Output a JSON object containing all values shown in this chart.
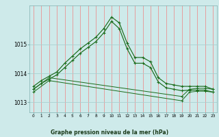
{
  "title": "Graphe pression niveau de la mer (hPa)",
  "bg_color": "#ceeaea",
  "grid_color_v": "#f08080",
  "grid_color_h": "#a8d0d0",
  "line_color": "#1a6b1a",
  "xlim": [
    -0.5,
    23.5
  ],
  "ylim": [
    1012.65,
    1016.35
  ],
  "yticks": [
    1013,
    1014,
    1015
  ],
  "xtick_labels": [
    "0",
    "1",
    "2",
    "3",
    "4",
    "5",
    "6",
    "7",
    "8",
    "9",
    "10",
    "11",
    "12",
    "13",
    "14",
    "15",
    "16",
    "17",
    "18",
    "19",
    "20",
    "21",
    "22",
    "23"
  ],
  "series": [
    {
      "x": [
        0,
        1,
        2,
        3,
        4,
        5,
        6,
        7,
        8,
        9,
        10,
        11,
        12,
        13,
        14,
        15,
        16,
        17,
        18,
        19,
        20,
        21,
        22,
        23
      ],
      "y": [
        1013.55,
        1013.75,
        1013.9,
        1014.05,
        1014.35,
        1014.6,
        1014.85,
        1015.05,
        1015.25,
        1015.55,
        1015.95,
        1015.75,
        1015.05,
        1014.55,
        1014.55,
        1014.4,
        1013.85,
        1013.65,
        1013.6,
        1013.55,
        1013.55,
        1013.55,
        1013.55,
        1013.45
      ]
    },
    {
      "x": [
        0,
        1,
        2,
        3,
        4,
        5,
        6,
        7,
        8,
        9,
        10,
        11,
        12,
        13,
        14,
        15,
        16,
        17,
        18,
        19,
        20,
        21,
        22,
        23
      ],
      "y": [
        1013.45,
        1013.65,
        1013.8,
        1013.95,
        1014.2,
        1014.45,
        1014.7,
        1014.9,
        1015.1,
        1015.4,
        1015.8,
        1015.55,
        1014.85,
        1014.35,
        1014.35,
        1014.2,
        1013.7,
        1013.5,
        1013.45,
        1013.4,
        1013.42,
        1013.42,
        1013.42,
        1013.35
      ]
    },
    {
      "x": [
        0,
        2,
        19,
        20,
        21,
        22,
        23
      ],
      "y": [
        1013.45,
        1013.85,
        1013.2,
        1013.45,
        1013.48,
        1013.48,
        1013.45
      ]
    },
    {
      "x": [
        0,
        2,
        19,
        20,
        21,
        22,
        23
      ],
      "y": [
        1013.35,
        1013.75,
        1013.05,
        1013.35,
        1013.38,
        1013.38,
        1013.35
      ]
    }
  ]
}
